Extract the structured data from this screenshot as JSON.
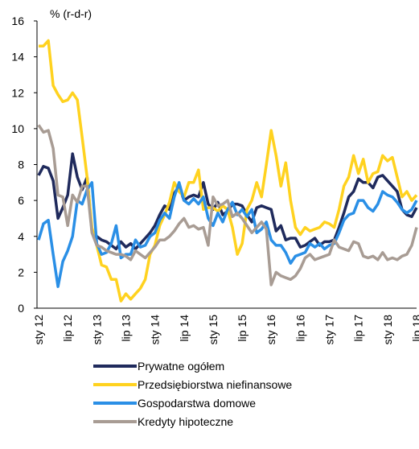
{
  "chart_data": {
    "type": "line",
    "annotation": "% (r-d-r)",
    "categories": [
      "sty 12",
      null,
      null,
      null,
      null,
      null,
      "lip 12",
      null,
      null,
      null,
      null,
      null,
      "sty 13",
      null,
      null,
      null,
      null,
      null,
      "lip 13",
      null,
      null,
      null,
      null,
      null,
      "sty 14",
      null,
      null,
      null,
      null,
      null,
      "lip 14",
      null,
      null,
      null,
      null,
      null,
      "sty 15",
      null,
      null,
      null,
      null,
      null,
      "lip 15",
      null,
      null,
      null,
      null,
      null,
      "sty 16",
      null,
      null,
      null,
      null,
      null,
      "lip 16",
      null,
      null,
      null,
      null,
      null,
      "sty 17",
      null,
      null,
      null,
      null,
      null,
      "lip 17",
      null,
      null,
      null,
      null,
      null,
      "sty 18",
      null,
      null,
      null,
      null,
      null,
      "lip 18"
    ],
    "series": [
      {
        "name": "Prywatne ogółem",
        "color": "#1f2a5c",
        "values": [
          7.4,
          7.9,
          7.8,
          7.1,
          5.0,
          5.6,
          6.3,
          8.6,
          7.3,
          6.6,
          7.3,
          4.3,
          4.0,
          3.8,
          3.7,
          3.5,
          3.3,
          3.7,
          3.4,
          3.6,
          3.3,
          3.6,
          3.9,
          4.2,
          4.6,
          5.2,
          5.7,
          5.5,
          6.4,
          6.8,
          6.0,
          6.2,
          6.3,
          6.2,
          7.0,
          5.8,
          5.5,
          5.9,
          5.2,
          5.4,
          5.8,
          5.8,
          5.7,
          5.2,
          4.8,
          5.6,
          5.7,
          5.6,
          5.5,
          4.3,
          4.6,
          3.8,
          3.9,
          3.9,
          3.4,
          3.5,
          3.7,
          3.9,
          3.5,
          3.7,
          3.7,
          3.8,
          4.5,
          5.3,
          6.2,
          6.5,
          7.2,
          7.0,
          7.0,
          6.7,
          7.3,
          7.4,
          7.1,
          6.8,
          6.5,
          5.5,
          5.2,
          5.1,
          5.6
        ]
      },
      {
        "name": "Przedsiębiorstwa niefinansowe",
        "color": "#ffd21f",
        "values": [
          14.6,
          14.6,
          14.9,
          12.4,
          11.9,
          11.5,
          11.6,
          12.0,
          11.6,
          9.5,
          7.3,
          4.5,
          3.5,
          2.4,
          2.3,
          1.6,
          1.6,
          0.4,
          0.8,
          0.5,
          0.8,
          1.1,
          1.6,
          3.0,
          3.5,
          4.6,
          5.2,
          5.9,
          7.0,
          6.5,
          6.2,
          7.0,
          7.0,
          7.7,
          5.5,
          5.6,
          5.6,
          5.4,
          5.7,
          5.5,
          4.5,
          3.0,
          3.6,
          5.5,
          6.0,
          7.0,
          6.2,
          8.0,
          9.9,
          8.5,
          6.8,
          8.1,
          6.0,
          4.5,
          4.1,
          4.5,
          4.3,
          4.4,
          4.5,
          4.8,
          4.7,
          4.5,
          5.5,
          6.8,
          7.3,
          8.5,
          7.5,
          8.3,
          7.0,
          7.5,
          7.6,
          8.5,
          8.2,
          8.4,
          7.3,
          6.2,
          6.5,
          6.0,
          6.3
        ]
      },
      {
        "name": "Gospodarstwa domowe",
        "color": "#2a8fe6",
        "values": [
          3.8,
          4.7,
          4.9,
          3.0,
          1.2,
          2.6,
          3.2,
          4.0,
          6.0,
          5.8,
          6.6,
          7.0,
          3.6,
          3.0,
          3.1,
          3.6,
          4.6,
          2.8,
          3.0,
          3.0,
          3.8,
          3.4,
          3.5,
          4.0,
          4.2,
          4.9,
          5.3,
          5.0,
          6.2,
          7.0,
          6.0,
          5.8,
          6.1,
          5.8,
          6.2,
          5.0,
          4.6,
          5.3,
          4.8,
          5.5,
          5.9,
          5.2,
          5.5,
          5.1,
          5.5,
          4.2,
          4.4,
          4.8,
          3.8,
          3.5,
          3.5,
          3.1,
          2.5,
          2.9,
          3.0,
          3.1,
          3.6,
          3.4,
          3.6,
          3.3,
          3.5,
          3.6,
          4.2,
          4.9,
          5.2,
          5.3,
          6.0,
          6.0,
          5.6,
          5.4,
          5.8,
          6.5,
          6.3,
          6.2,
          5.9,
          5.5,
          5.3,
          5.5,
          6.0
        ]
      },
      {
        "name": "Kredyty hipoteczne",
        "color": "#a89c94",
        "values": [
          10.2,
          9.8,
          9.9,
          8.9,
          6.3,
          6.2,
          4.6,
          6.3,
          5.9,
          6.8,
          6.8,
          4.2,
          3.5,
          3.4,
          3.2,
          3.1,
          3.0,
          3.0,
          2.9,
          2.7,
          3.2,
          3.0,
          2.8,
          3.1,
          3.4,
          3.8,
          3.8,
          4.0,
          4.3,
          4.7,
          5.0,
          4.5,
          4.6,
          4.4,
          4.5,
          3.5,
          6.2,
          5.7,
          5.8,
          6.0,
          5.1,
          5.3,
          5.0,
          4.6,
          4.2,
          4.5,
          4.8,
          4.4,
          1.3,
          2.0,
          1.8,
          1.7,
          1.6,
          1.8,
          2.2,
          2.8,
          3.0,
          2.7,
          2.8,
          2.9,
          3.0,
          3.8,
          3.4,
          3.3,
          3.2,
          3.7,
          3.6,
          2.9,
          2.8,
          2.9,
          2.7,
          3.1,
          2.7,
          2.8,
          2.7,
          2.9,
          3.0,
          3.5,
          4.5
        ]
      }
    ],
    "ylim": [
      0,
      16
    ],
    "yticks": [
      0,
      2,
      4,
      6,
      8,
      10,
      12,
      14,
      16
    ],
    "grid": false
  }
}
